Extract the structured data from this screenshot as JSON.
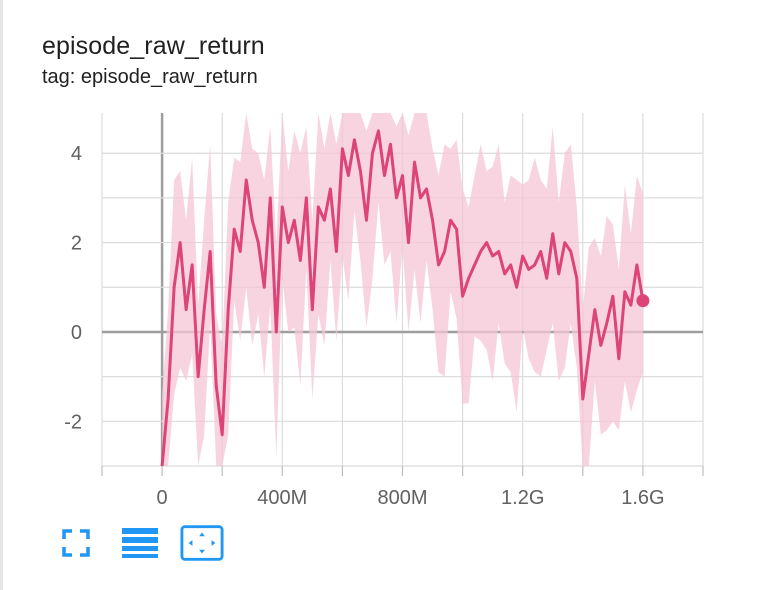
{
  "header": {
    "title": "episode_raw_return",
    "tag_line": "tag: episode_raw_return"
  },
  "toolbar": {
    "items": [
      {
        "name": "fullscreen-icon"
      },
      {
        "name": "data-table-icon"
      },
      {
        "name": "fit-domain-icon"
      }
    ],
    "icon_color": "#2196f3"
  },
  "chart_data": {
    "type": "line",
    "title": "episode_raw_return",
    "xlabel": "",
    "ylabel": "",
    "xlim": [
      -200000000,
      1800000000
    ],
    "ylim": [
      -3,
      4.9
    ],
    "x_ticks": [
      0,
      400000000,
      800000000,
      1200000000,
      1600000000
    ],
    "x_tick_labels": [
      "0",
      "400M",
      "800M",
      "1.2G",
      "1.6G"
    ],
    "y_ticks": [
      -2,
      0,
      2,
      4
    ],
    "y_tick_labels": [
      "-2",
      "0",
      "2",
      "4"
    ],
    "grid": true,
    "legend": "none",
    "colors": {
      "smoothed": "#dd4477",
      "raw": "#f5c6d6",
      "axis": "#9e9e9e",
      "grid": "#dcdcdc"
    },
    "series": [
      {
        "x": [
          0,
          20000000,
          40000000,
          60000000,
          80000000,
          100000000,
          120000000,
          140000000,
          160000000,
          180000000,
          200000000,
          220000000,
          240000000,
          260000000,
          280000000,
          300000000,
          320000000,
          340000000,
          360000000,
          380000000,
          400000000,
          420000000,
          440000000,
          460000000,
          480000000,
          500000000,
          520000000,
          540000000,
          560000000,
          580000000,
          600000000,
          620000000,
          640000000,
          660000000,
          680000000,
          700000000,
          720000000,
          740000000,
          760000000,
          780000000,
          800000000,
          820000000,
          840000000,
          860000000,
          880000000,
          900000000,
          920000000,
          940000000,
          960000000,
          980000000,
          1000000000,
          1020000000,
          1040000000,
          1060000000,
          1080000000,
          1100000000,
          1120000000,
          1140000000,
          1160000000,
          1180000000,
          1200000000,
          1220000000,
          1240000000,
          1260000000,
          1280000000,
          1300000000,
          1320000000,
          1340000000,
          1360000000,
          1380000000,
          1400000000,
          1420000000,
          1440000000,
          1460000000,
          1480000000,
          1500000000,
          1520000000,
          1540000000,
          1560000000,
          1580000000,
          1600000000
        ],
        "y": [
          -3.0,
          -1.5,
          1.0,
          2.0,
          0.5,
          1.5,
          -1.0,
          0.5,
          1.8,
          -1.2,
          -2.3,
          0.5,
          2.3,
          1.8,
          3.4,
          2.5,
          2.0,
          1.0,
          3.0,
          0.0,
          2.8,
          2.0,
          2.5,
          1.6,
          3.0,
          0.5,
          2.8,
          2.5,
          3.2,
          1.8,
          4.1,
          3.5,
          4.3,
          3.6,
          2.5,
          4.0,
          4.5,
          3.5,
          4.2,
          3.0,
          3.5,
          2.0,
          3.8,
          3.0,
          3.2,
          2.5,
          1.5,
          1.8,
          2.5,
          2.3,
          0.8,
          1.2,
          1.5,
          1.8,
          2.0,
          1.7,
          1.8,
          1.3,
          1.5,
          1.0,
          1.7,
          1.4,
          1.5,
          1.8,
          1.2,
          2.2,
          1.3,
          2.0,
          1.8,
          1.2,
          -1.5,
          -0.5,
          0.5,
          -0.3,
          0.2,
          0.8,
          -0.6,
          0.9,
          0.6,
          1.5,
          0.7
        ]
      }
    ]
  }
}
